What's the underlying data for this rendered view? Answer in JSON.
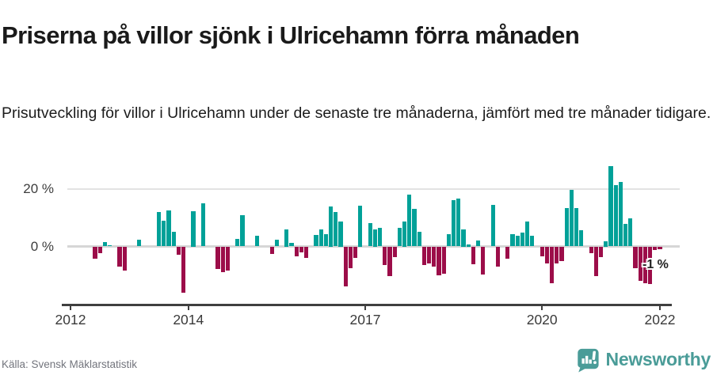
{
  "header": {
    "title": "Priserna på villor sjönk i Ulricehamn förra månaden",
    "subtitle": "Prisutveckling för villor i Ulricehamn under de senaste tre månaderna, jämfört med tre månader tidigare."
  },
  "chart_data": {
    "type": "bar",
    "unit": "%",
    "x_start": "2012-06",
    "x_end": "2022-01",
    "x_frequency": "monthly",
    "values": [
      -4.3,
      -2.3,
      1.6,
      0.5,
      0,
      -7,
      -8.5,
      0,
      0,
      2.3,
      0,
      0,
      0,
      11.9,
      8.9,
      12.6,
      5.2,
      -2.9,
      -16,
      0,
      12.4,
      0,
      15,
      0,
      0,
      -7.8,
      -8.9,
      -8.5,
      0,
      2.7,
      11,
      0,
      0,
      3.8,
      0,
      0,
      -2.5,
      2.3,
      0,
      6,
      1.2,
      -3.4,
      -2,
      -3.9,
      0,
      4.1,
      5.9,
      4.3,
      14,
      11.9,
      8.7,
      -14,
      -7.5,
      -4,
      14.2,
      0,
      8.2,
      6,
      6.4,
      -6.5,
      -10.4,
      -3.7,
      6.4,
      8.7,
      18.1,
      13,
      5,
      -6.4,
      -5.8,
      -7,
      -10,
      -9.5,
      4.3,
      16.2,
      16.8,
      6,
      0.7,
      -6.1,
      2.1,
      -9.8,
      0,
      14.4,
      -7,
      0,
      -4.3,
      4.3,
      3.7,
      4.8,
      8.6,
      3.7,
      0,
      -3.5,
      -5.9,
      -12.8,
      -5.9,
      -5,
      13.3,
      19.6,
      13.4,
      5.7,
      0,
      -2.3,
      -10.2,
      -3.6,
      1.8,
      28.1,
      21.5,
      22.6,
      7.8,
      9.9,
      -7.6,
      -12.1,
      -12.8,
      -13,
      -1.1,
      -1
    ],
    "x_ticks": [
      {
        "label": "2012",
        "year": 2012
      },
      {
        "label": "2014",
        "year": 2014
      },
      {
        "label": "2017",
        "year": 2017
      },
      {
        "label": "2020",
        "year": 2020
      },
      {
        "label": "2022",
        "year": 2022
      }
    ],
    "y_ticks": [
      {
        "label": "20 %",
        "value": 20
      },
      {
        "label": "0 %",
        "value": 0
      }
    ],
    "ylim": [
      -18,
      30
    ],
    "grid": "horizontal-only",
    "legend": "none",
    "annotation": {
      "text": "-1 %",
      "value": -1,
      "target": "last-bar"
    },
    "colors": {
      "positive": "#00a198",
      "negative": "#9c0d49"
    }
  },
  "footer": {
    "source": "Källa: Svensk Mäklarstatistik",
    "brand": "Newsworthy",
    "brand_color": "#4a9c98"
  }
}
